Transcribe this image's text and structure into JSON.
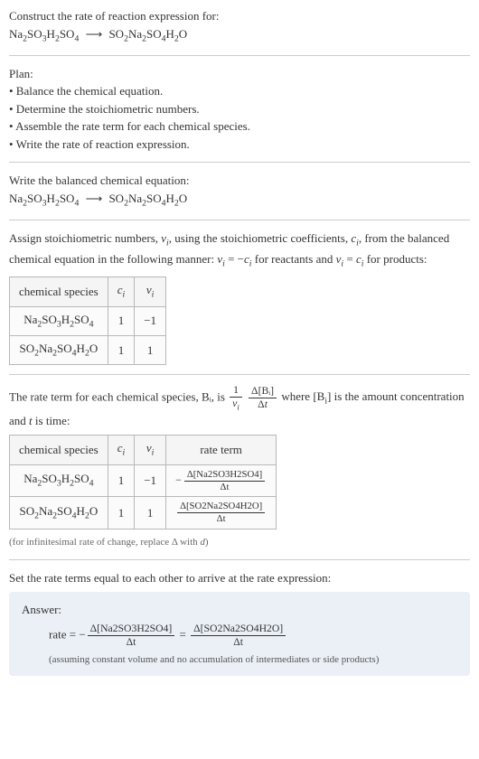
{
  "intro": {
    "line1": "Construct the rate of reaction expression for:",
    "reactant": "Na2SO3H2SO4",
    "arrow": "⟶",
    "product": "SO2Na2SO4H2O"
  },
  "plan": {
    "title": "Plan:",
    "items": [
      "• Balance the chemical equation.",
      "• Determine the stoichiometric numbers.",
      "• Assemble the rate term for each chemical species.",
      "• Write the rate of reaction expression."
    ]
  },
  "balanced": {
    "title": "Write the balanced chemical equation:",
    "reactant": "Na2SO3H2SO4",
    "arrow": "⟶",
    "product": "SO2Na2SO4H2O"
  },
  "stoich": {
    "para": "Assign stoichiometric numbers, νᵢ, using the stoichiometric coefficients, cᵢ, from the balanced chemical equation in the following manner: νᵢ = −cᵢ for reactants and νᵢ = cᵢ for products:",
    "headers": [
      "chemical species",
      "cᵢ",
      "νᵢ"
    ],
    "rows": [
      {
        "species": "Na2SO3H2SO4",
        "c": "1",
        "v": "−1"
      },
      {
        "species": "SO2Na2SO4H2O",
        "c": "1",
        "v": "1"
      }
    ]
  },
  "rateterm": {
    "para_a": "The rate term for each chemical species, Bᵢ, is ",
    "frac1_num": "1",
    "frac1_den": "νᵢ",
    "frac2_num": "Δ[Bᵢ]",
    "frac2_den": "Δt",
    "para_b": " where [Bᵢ] is the amount concentration and t is time:",
    "headers": [
      "chemical species",
      "cᵢ",
      "νᵢ",
      "rate term"
    ],
    "rows": [
      {
        "species": "Na2SO3H2SO4",
        "c": "1",
        "v": "−1",
        "sign": "−",
        "num": "Δ[Na2SO3H2SO4]",
        "den": "Δt"
      },
      {
        "species": "SO2Na2SO4H2O",
        "c": "1",
        "v": "1",
        "sign": "",
        "num": "Δ[SO2Na2SO4H2O]",
        "den": "Δt"
      }
    ],
    "note": "(for infinitesimal rate of change, replace Δ with d)"
  },
  "final": {
    "title": "Set the rate terms equal to each other to arrive at the rate expression:",
    "answer_label": "Answer:",
    "rate_word": "rate = −",
    "lhs_num": "Δ[Na2SO3H2SO4]",
    "lhs_den": "Δt",
    "eq": " = ",
    "rhs_num": "Δ[SO2Na2SO4H2O]",
    "rhs_den": "Δt",
    "assume": "(assuming constant volume and no accumulation of intermediates or side products)"
  },
  "colors": {
    "text": "#333333",
    "rule": "#cccccc",
    "table_border": "#b8b8b8",
    "answer_bg": "#eaf0f6",
    "note": "#666666"
  }
}
